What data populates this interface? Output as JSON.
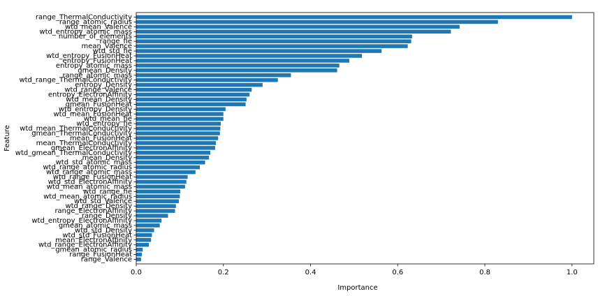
{
  "chart_data": {
    "type": "barh",
    "x_label": "Importance",
    "y_label": "Feature",
    "color": "#1f77b4",
    "categories": [
      "range_ThermalConductivity",
      "range_atomic_radius",
      "wtd_mean_Valence",
      "wtd_entropy_atomic_mass",
      "number_of_elements",
      "range_fie",
      "mean_Valence",
      "wtd_std_fie",
      "wtd_entropy_FusionHeat",
      "entropy_FusionHeat",
      "entropy_atomic_mass",
      "gmean_Density",
      "range_atomic_mass",
      "wtd_range_ThermalConductivity",
      "entropy_Density",
      "wtd_range_Valence",
      "entropy_ElectronAffinity",
      "wtd_mean_Density",
      "gmean_FusionHeat",
      "wtd_entropy_Density",
      "wtd_mean_FusionHeat",
      "wtd_mean_fie",
      "wtd_entropy_fie",
      "wtd_mean_ThermalConductivity",
      "gmean_ThermalConductivity",
      "mean_FusionHeat",
      "mean_ThermalConductivity",
      "gmean_ElectronAffinity",
      "wtd_gmean_ThermalConductivity",
      "mean_Density",
      "wtd_std_atomic_mass",
      "wtd_range_atomic_radius",
      "wtd_range_atomic_mass",
      "wtd_range_FusionHeat",
      "wtd_std_ElectronAffinity",
      "wtd_mean_atomic_mass",
      "wtd_range_fie",
      "wtd_mean_atomic_radius",
      "wtd_std_Valence",
      "wtd_range_Density",
      "range_ElectronAffinity",
      "range_Density",
      "wtd_entropy_ElectronAffinity",
      "gmean_atomic_mass",
      "wtd_std_Density",
      "wtd_std_FusionHeat",
      "mean_ElectronAffinity",
      "wtd_range_ElectronAffinity",
      "gmean_atomic_radius",
      "range_FusionHeat",
      "range_Valence"
    ],
    "values": [
      1.0,
      0.83,
      0.742,
      0.722,
      0.633,
      0.631,
      0.623,
      0.563,
      0.518,
      0.489,
      0.466,
      0.461,
      0.355,
      0.325,
      0.29,
      0.265,
      0.26,
      0.253,
      0.251,
      0.205,
      0.2,
      0.2,
      0.194,
      0.193,
      0.192,
      0.188,
      0.183,
      0.181,
      0.17,
      0.167,
      0.158,
      0.146,
      0.136,
      0.118,
      0.115,
      0.112,
      0.101,
      0.1,
      0.098,
      0.091,
      0.089,
      0.073,
      0.058,
      0.054,
      0.041,
      0.036,
      0.034,
      0.029,
      0.015,
      0.013,
      0.011
    ],
    "xlim": [
      0,
      1.05
    ],
    "xticks": [
      {
        "value": 0,
        "label": "0.0"
      },
      0.2,
      0.4,
      0.6,
      0.8,
      {
        "value": 1,
        "label": "1.0"
      }
    ]
  }
}
